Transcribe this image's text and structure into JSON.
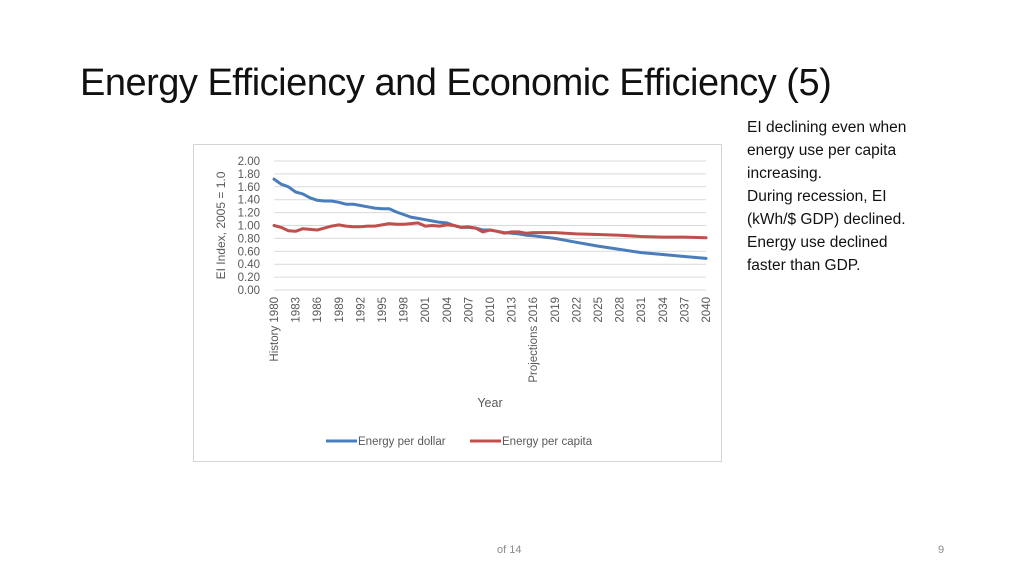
{
  "slide": {
    "title": "Energy Efficiency and Economic Efficiency (5)",
    "notes": [
      "EI declining even when",
      "energy use per capita",
      "increasing.",
      "During recession, EI",
      "(kWh/$ GDP) declined.",
      "Energy use declined",
      "faster than GDP."
    ],
    "footer_of": "of 14",
    "page_number": "9"
  },
  "chart_data": {
    "type": "line",
    "title": "",
    "xlabel": "Year",
    "ylabel": "EI Index, 2005 = 1.0",
    "ylim": [
      0,
      2
    ],
    "y_ticks": [
      "0.00",
      "0.20",
      "0.40",
      "0.60",
      "0.80",
      "1.00",
      "1.20",
      "1.40",
      "1.60",
      "1.80",
      "2.00"
    ],
    "x_start": 1980,
    "x_end": 2040,
    "x_ticks": [
      {
        "year": 1980,
        "label": "History 1980"
      },
      {
        "year": 1983,
        "label": "1983"
      },
      {
        "year": 1986,
        "label": "1986"
      },
      {
        "year": 1989,
        "label": "1989"
      },
      {
        "year": 1992,
        "label": "1992"
      },
      {
        "year": 1995,
        "label": "1995"
      },
      {
        "year": 1998,
        "label": "1998"
      },
      {
        "year": 2001,
        "label": "2001"
      },
      {
        "year": 2004,
        "label": "2004"
      },
      {
        "year": 2007,
        "label": "2007"
      },
      {
        "year": 2010,
        "label": "2010"
      },
      {
        "year": 2013,
        "label": "2013"
      },
      {
        "year": 2016,
        "label": "Projections 2016"
      },
      {
        "year": 2019,
        "label": "2019"
      },
      {
        "year": 2022,
        "label": "2022"
      },
      {
        "year": 2025,
        "label": "2025"
      },
      {
        "year": 2028,
        "label": "2028"
      },
      {
        "year": 2031,
        "label": "2031"
      },
      {
        "year": 2034,
        "label": "2034"
      },
      {
        "year": 2037,
        "label": "2037"
      },
      {
        "year": 2040,
        "label": "2040"
      }
    ],
    "grid": true,
    "legend_position": "bottom",
    "series": [
      {
        "name": "Energy per dollar",
        "color": "#4a7ebb",
        "x": [
          1980,
          1981,
          1982,
          1983,
          1984,
          1985,
          1986,
          1987,
          1988,
          1989,
          1990,
          1991,
          1992,
          1993,
          1994,
          1995,
          1996,
          1997,
          1998,
          1999,
          2000,
          2001,
          2002,
          2003,
          2004,
          2005,
          2006,
          2007,
          2008,
          2009,
          2010,
          2011,
          2012,
          2013,
          2014,
          2015,
          2016,
          2019,
          2022,
          2025,
          2028,
          2031,
          2034,
          2037,
          2040
        ],
        "values": [
          1.72,
          1.64,
          1.6,
          1.52,
          1.49,
          1.43,
          1.39,
          1.38,
          1.38,
          1.36,
          1.33,
          1.33,
          1.31,
          1.29,
          1.27,
          1.26,
          1.26,
          1.21,
          1.17,
          1.13,
          1.11,
          1.09,
          1.07,
          1.05,
          1.04,
          1.0,
          0.97,
          0.97,
          0.96,
          0.93,
          0.93,
          0.91,
          0.89,
          0.88,
          0.87,
          0.85,
          0.84,
          0.8,
          0.74,
          0.68,
          0.63,
          0.58,
          0.55,
          0.52,
          0.49
        ]
      },
      {
        "name": "Energy per capita",
        "color": "#c0504d",
        "x": [
          1980,
          1981,
          1982,
          1983,
          1984,
          1985,
          1986,
          1987,
          1988,
          1989,
          1990,
          1991,
          1992,
          1993,
          1994,
          1995,
          1996,
          1997,
          1998,
          1999,
          2000,
          2001,
          2002,
          2003,
          2004,
          2005,
          2006,
          2007,
          2008,
          2009,
          2010,
          2011,
          2012,
          2013,
          2014,
          2015,
          2016,
          2019,
          2022,
          2025,
          2028,
          2031,
          2034,
          2037,
          2040
        ],
        "values": [
          1.0,
          0.97,
          0.92,
          0.91,
          0.95,
          0.94,
          0.93,
          0.96,
          0.99,
          1.01,
          0.99,
          0.98,
          0.98,
          0.99,
          0.99,
          1.01,
          1.03,
          1.02,
          1.02,
          1.03,
          1.04,
          0.99,
          1.0,
          0.99,
          1.01,
          1.0,
          0.97,
          0.98,
          0.96,
          0.9,
          0.93,
          0.91,
          0.88,
          0.9,
          0.9,
          0.88,
          0.89,
          0.89,
          0.87,
          0.86,
          0.85,
          0.83,
          0.82,
          0.82,
          0.81
        ]
      }
    ]
  }
}
